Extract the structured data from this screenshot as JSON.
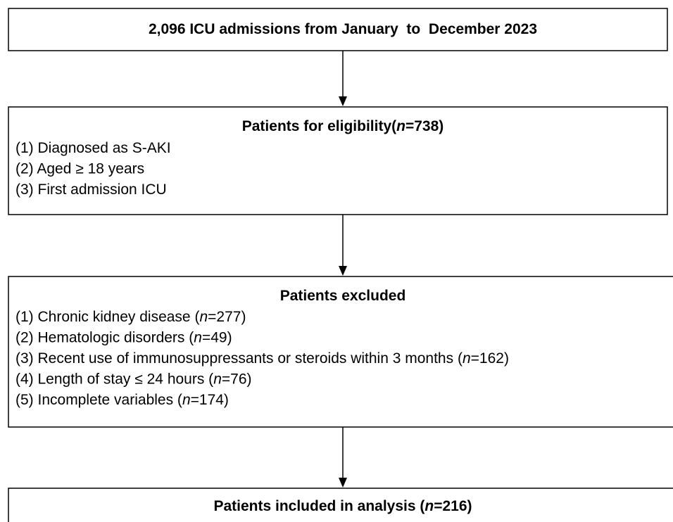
{
  "boxes": [
    {
      "title": [
        "2,096 ICU admissions from January  to  December 2023"
      ]
    },
    {
      "title": [
        "Patients for eligibility(",
        "n",
        "=738)"
      ],
      "items": [
        [
          "(1) Diagnosed as S-AKI"
        ],
        [
          "(2) Aged ≥ 18 years"
        ],
        [
          "(3) First admission ICU"
        ]
      ]
    },
    {
      "title": [
        "Patients excluded"
      ],
      "items": [
        [
          "(1) Chronic kidney disease (",
          "n",
          "=277)"
        ],
        [
          "(2) Hematologic disorders (",
          "n",
          "=49)"
        ],
        [
          "(3) Recent use of immunosuppressants or steroids within 3 months (",
          "n",
          "=162)"
        ],
        [
          "(4) Length of stay ≤ 24 hours (",
          "n",
          "=76)"
        ],
        [
          "(5) Incomplete variables (",
          "n",
          "=174)"
        ]
      ]
    },
    {
      "title": [
        "Patients included in analysis (",
        "n",
        "=216)"
      ]
    }
  ]
}
